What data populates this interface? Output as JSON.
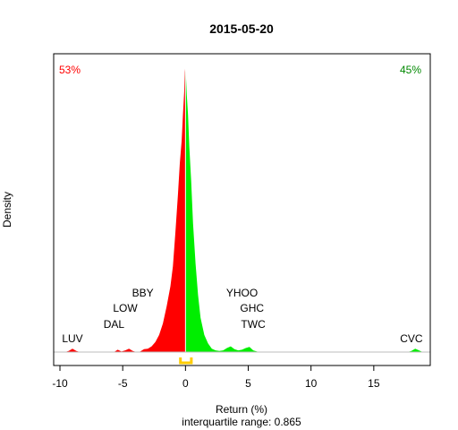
{
  "chart_data": {
    "type": "area",
    "title": "2015-05-20",
    "xlabel": "Return (%)",
    "ylabel": "Density",
    "subtitle": "interquartile range: 0.865",
    "xlim": [
      -10.5,
      19.5
    ],
    "ylim": [
      0,
      1.0
    ],
    "x_ticks": [
      -10,
      -5,
      0,
      5,
      10,
      15
    ],
    "grid": false,
    "down_pct": "53%",
    "up_pct": "45%",
    "colors": {
      "down": "#ff0000",
      "up": "#00ee00",
      "iqr": "#ffcc00",
      "baseline": "#bebebe"
    },
    "iqr": [
      -0.4,
      0.465
    ],
    "density": {
      "x": [
        -10.2,
        -9.9,
        -9.6,
        -9.3,
        -9.0,
        -8.7,
        -8.4,
        -8.1,
        -7.8,
        -7.5,
        -7.2,
        -6.9,
        -6.6,
        -6.3,
        -6.0,
        -5.7,
        -5.4,
        -5.1,
        -4.8,
        -4.5,
        -4.2,
        -3.9,
        -3.6,
        -3.3,
        -3.0,
        -2.7,
        -2.4,
        -2.1,
        -1.8,
        -1.5,
        -1.2,
        -1.0,
        -0.8,
        -0.6,
        -0.45,
        -0.3,
        -0.2,
        -0.1,
        -0.05,
        0.0,
        0.05,
        0.1,
        0.2,
        0.3,
        0.45,
        0.6,
        0.8,
        1.0,
        1.2,
        1.5,
        1.8,
        2.1,
        2.4,
        2.7,
        3.0,
        3.3,
        3.6,
        3.9,
        4.2,
        4.5,
        4.8,
        5.1,
        5.4,
        5.7,
        6.0,
        6.3,
        6.6,
        6.9,
        7.2,
        7.5,
        7.8,
        8.1,
        8.4,
        8.7,
        9.0,
        9.3,
        9.6,
        9.9,
        10.2,
        10.5,
        10.8,
        11.1,
        11.4,
        11.7,
        12.0,
        12.3,
        12.6,
        12.9,
        13.2,
        13.5,
        13.8,
        14.1,
        14.4,
        14.7,
        15.0,
        15.3,
        15.6,
        15.9,
        16.2,
        16.5,
        16.8,
        17.1,
        17.4,
        17.7,
        18.0,
        18.3,
        18.6,
        18.9
      ],
      "y": [
        0,
        0,
        0,
        0.004,
        0.012,
        0.004,
        0,
        0,
        0,
        0,
        0,
        0,
        0,
        0,
        0,
        0,
        0.008,
        0.002,
        0.006,
        0.012,
        0.004,
        0,
        0.002,
        0.01,
        0.012,
        0.02,
        0.035,
        0.06,
        0.1,
        0.16,
        0.23,
        0.3,
        0.42,
        0.55,
        0.66,
        0.74,
        0.83,
        0.91,
        0.98,
        1.0,
        0.95,
        0.9,
        0.83,
        0.72,
        0.6,
        0.45,
        0.31,
        0.2,
        0.12,
        0.06,
        0.03,
        0.012,
        0.006,
        0.004,
        0.006,
        0.014,
        0.02,
        0.01,
        0.006,
        0.008,
        0.014,
        0.018,
        0.006,
        0.002,
        0,
        0,
        0,
        0,
        0,
        0,
        0,
        0,
        0,
        0,
        0,
        0,
        0,
        0,
        0,
        0,
        0,
        0,
        0,
        0,
        0,
        0,
        0,
        0,
        0,
        0,
        0,
        0,
        0,
        0,
        0,
        0,
        0,
        0,
        0,
        0,
        0,
        0,
        0,
        0,
        0.004,
        0.012,
        0.006,
        0
      ]
    },
    "annotations": [
      {
        "text": "LUV",
        "x": -9.0
      },
      {
        "text": "DAL",
        "x": -5.7
      },
      {
        "text": "LOW",
        "x": -4.8
      },
      {
        "text": "BBY",
        "x": -3.4
      },
      {
        "text": "YHOO",
        "x": 4.5
      },
      {
        "text": "GHC",
        "x": 5.3
      },
      {
        "text": "TWC",
        "x": 5.4
      },
      {
        "text": "CVC",
        "x": 18.0
      }
    ]
  }
}
